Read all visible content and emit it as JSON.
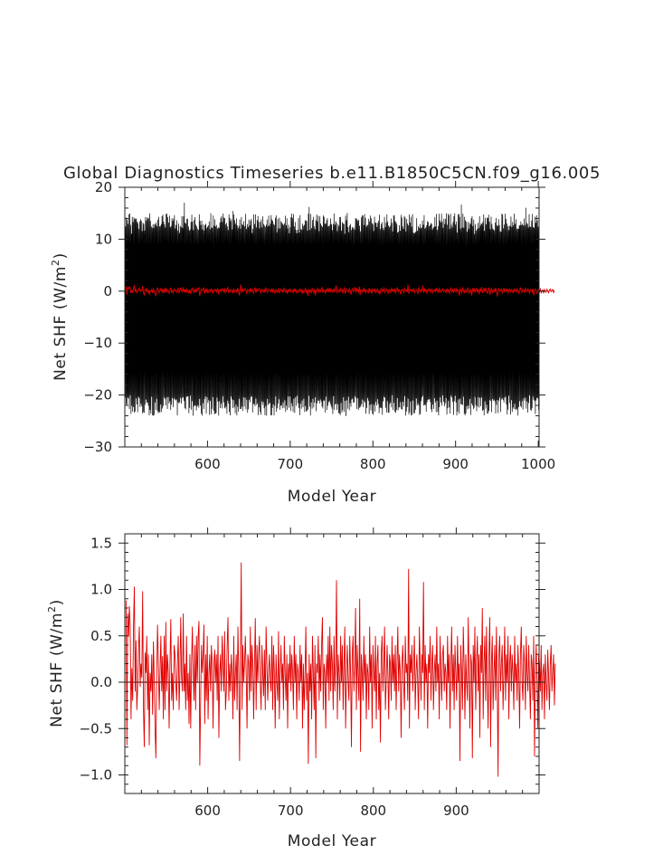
{
  "title": "Global Diagnostics Timeseries b.e11.B1850C5CN.f09_g16.005",
  "colors": {
    "monthly": "#000000",
    "annual": "#e00000",
    "zero_line": "#000000",
    "axes": "#222222"
  },
  "chart_data": [
    {
      "type": "line",
      "title": "Global Diagnostics Timeseries b.e11.B1850C5CN.f09_g16.005",
      "xlabel": "Model Year",
      "ylabel_main": "Net SHF (W/m",
      "ylabel_sup": "2",
      "ylabel_end": ")",
      "xlim": [
        500,
        1001
      ],
      "ylim": [
        -30,
        20
      ],
      "xticks": [
        600,
        700,
        800,
        900,
        1000
      ],
      "xtick_labels": [
        "600",
        "700",
        "800",
        "900",
        "1000"
      ],
      "yticks": [
        20,
        10,
        0,
        -10,
        -20,
        -30
      ],
      "ytick_labels": [
        "20",
        "10",
        "0",
        "−10",
        "−20",
        "−30"
      ],
      "grid": false,
      "series": [
        {
          "color": "#000000",
          "kind": "monthly seasonal cycle",
          "summary": {
            "typical_max": 13,
            "typical_min": -22,
            "peak_max": 17.5,
            "peak_min": -27
          }
        },
        {
          "color": "#e00000",
          "kind": "annual mean",
          "summary": {
            "mean": 0.2,
            "range": [
              -1.0,
              1.3
            ]
          }
        }
      ]
    },
    {
      "type": "line",
      "xlabel": "Model Year",
      "ylabel_main": "Net SHF (W/m",
      "ylabel_sup": "2",
      "ylabel_end": ")",
      "xlim": [
        500,
        1000
      ],
      "ylim": [
        -1.2,
        1.6
      ],
      "xticks": [
        600,
        700,
        800,
        900
      ],
      "xtick_labels": [
        "600",
        "700",
        "800",
        "900"
      ],
      "yticks": [
        1.5,
        1.0,
        0.5,
        0.0,
        -0.5,
        -1.0
      ],
      "ytick_labels": [
        "1.5",
        "1.0",
        "0.5",
        "0.0",
        "−0.5",
        "−1.0"
      ],
      "grid": false,
      "reference_line": 0,
      "series": [
        {
          "color": "#e00000",
          "kind": "annual mean",
          "x_start": 501,
          "x_step": 1,
          "values": [
            0.88,
            -0.68,
            0.74,
            0.49,
            0.82,
            0.6,
            -0.4,
            0.15,
            -0.2,
            0.62,
            1.03,
            -0.1,
            0.45,
            -0.3,
            -0.05,
            0.35,
            0.6,
            -0.05,
            0.2,
            0.05,
            0.98,
            -0.3,
            -0.7,
            0.32,
            0.1,
            0.5,
            -0.3,
            0.3,
            -0.68,
            0.1,
            -0.1,
            0.3,
            -0.35,
            0.44,
            0.05,
            -0.5,
            -0.82,
            0.1,
            0.62,
            0.2,
            -0.3,
            0.1,
            0.5,
            -0.1,
            0.28,
            -0.4,
            0.5,
            -0.3,
            0.65,
            -0.1,
            0.3,
            0.1,
            -0.5,
            0.2,
            0.68,
            -0.2,
            0.1,
            -0.3,
            0.4,
            0.3,
            0.0,
            -0.2,
            0.22,
            0.5,
            -0.3,
            0.1,
            0.7,
            0.05,
            -0.1,
            0.74,
            -0.1,
            0.2,
            -0.3,
            0.5,
            -0.2,
            0.1,
            -0.45,
            0.3,
            -0.5,
            0.2,
            0.6,
            0.1,
            -0.2,
            0.4,
            -0.3,
            0.5,
            0.0,
            0.5,
            0.66,
            -0.9,
            -0.2,
            0.4,
            0.1,
            0.3,
            0.62,
            -0.45,
            0.3,
            -0.2,
            0.5,
            -0.4,
            0.1,
            0.3,
            -0.1,
            0.4,
            0.2,
            -0.5,
            0.2,
            0.35,
            0.0,
            0.3,
            -0.2,
            0.5,
            -0.6,
            0.1,
            0.3,
            -0.1,
            0.5,
            0.2,
            -0.1,
            0.55,
            -0.3,
            -0.1,
            0.4,
            0.7,
            -0.2,
            0.2,
            -0.1,
            0.3,
            0.1,
            -0.4,
            0.5,
            -0.2,
            0.1,
            0.3,
            -0.3,
            0.6,
            0.1,
            -0.85,
            0.2,
            1.29,
            -0.3,
            0.4,
            0.0,
            0.2,
            0.5,
            0.1,
            -0.5,
            0.3,
            0.2,
            -0.2,
            0.6,
            -0.1,
            0.4,
            0.2,
            -0.4,
            0.2,
            0.69,
            -0.3,
            0.4,
            0.0,
            0.3,
            0.5,
            0.0,
            -0.3,
            0.4,
            0.1,
            -0.15,
            0.35,
            -0.3,
            0.6,
            0.2,
            -0.2,
            0.1,
            0.3,
            0.0,
            -0.1,
            0.5,
            -0.3,
            0.4,
            0.1,
            -0.5,
            0.3,
            0.0,
            -0.2,
            0.55,
            -0.4,
            0.1,
            0.4,
            0.0,
            0.2,
            -0.3,
            0.5,
            0.1,
            -0.2,
            0.3,
            -0.5,
            0.2,
            0.0,
            0.4,
            -0.1,
            0.3,
            0.1,
            -0.3,
            0.5,
            0.0,
            0.3,
            -0.4,
            0.2,
            0.1,
            -0.2,
            0.4,
            0.0,
            0.3,
            -0.5,
            0.2,
            -0.3,
            0.1,
            0.6,
            -0.2,
            0.1,
            -0.88,
            0.3,
            -0.1,
            0.2,
            -0.4,
            0.5,
            0.1,
            -0.3,
            0.4,
            -0.82,
            0.2,
            0.1,
            0.5,
            -0.2,
            0.3,
            -0.1,
            0.4,
            0.7,
            -0.3,
            0.2,
            0.1,
            -0.5,
            0.3,
            0.0,
            0.5,
            -0.2,
            0.6,
            -0.1,
            0.4,
            0.2,
            -0.3,
            0.5,
            -0.1,
            0.2,
            1.1,
            -0.4,
            0.3,
            0.1,
            -0.2,
            0.5,
            0.0,
            0.4,
            -0.3,
            0.2,
            0.6,
            -0.5,
            0.1,
            0.4,
            0.0,
            -0.2,
            0.5,
            0.1,
            -0.7,
            0.3,
            0.5,
            -0.1,
            0.2,
            0.8,
            -0.3,
            0.4,
            0.1,
            -0.2,
            0.9,
            -0.75,
            0.3,
            0.1,
            -0.2,
            0.5,
            0.0,
            0.3,
            -0.4,
            0.2,
            0.1,
            -0.3,
            0.6,
            0.0,
            0.3,
            -0.5,
            0.4,
            0.1,
            -0.1,
            0.5,
            -0.4,
            0.2,
            0.4,
            -0.3,
            0.1,
            -0.65,
            0.3,
            0.5,
            -0.1,
            0.2,
            0.6,
            -0.3,
            0.0,
            0.4,
            0.1,
            -0.4,
            0.3,
            0.2,
            -0.2,
            0.5,
            0.0,
            0.3,
            -0.1,
            0.4,
            -0.3,
            0.2,
            0.6,
            -0.1,
            0.3,
            0.1,
            -0.6,
            0.2,
            0.4,
            0.0,
            -0.3,
            0.5,
            0.1,
            0.2,
            -0.2,
            1.22,
            -0.5,
            0.3,
            0.1,
            0.4,
            -0.1,
            0.2,
            0.5,
            -0.3,
            0.1,
            0.3,
            0.0,
            -0.4,
            0.6,
            0.2,
            -0.2,
            0.3,
            0.1,
            1.08,
            -0.3,
            0.4,
            0.0,
            0.2,
            -0.5,
            0.3,
            0.1,
            0.5,
            -0.2,
            0.2,
            0.4,
            -0.3,
            0.1,
            0.3,
            -0.1,
            0.6,
            0.0,
            0.2,
            -0.4,
            0.5,
            0.1,
            -0.2,
            0.3,
            0.4,
            -0.1,
            0.2,
            0.1,
            -0.3,
            0.5,
            0.0,
            0.3,
            -0.5,
            0.2,
            0.6,
            -0.1,
            0.3,
            -0.3,
            0.4,
            0.1,
            -0.2,
            0.5,
            0.0,
            0.2,
            -0.85,
            0.4,
            0.1,
            -0.3,
            0.6,
            0.2,
            -0.4,
            0.3,
            0.0,
            -0.2,
            0.7,
            0.1,
            -0.5,
            0.3,
            0.2,
            -0.82,
            0.4,
            0.0,
            0.6,
            -0.3,
            0.2,
            0.5,
            -0.1,
            0.3,
            -0.6,
            0.4,
            0.1,
            0.8,
            -0.4,
            0.2,
            0.5,
            -0.2,
            0.6,
            0.0,
            -0.5,
            0.3,
            0.7,
            -0.7,
            0.2,
            0.5,
            -0.3,
            0.1,
            0.4,
            -0.2,
            0.6,
            0.0,
            -1.02,
            0.3,
            0.5,
            -0.1,
            0.2,
            0.4,
            -0.3,
            0.1,
            0.6,
            -0.2,
            0.3,
            0.0,
            0.5,
            -0.4,
            0.2,
            0.4,
            -0.1,
            0.3,
            0.1,
            -0.3,
            0.5,
            0.0,
            0.2,
            -0.2,
            0.4,
            0.1,
            -0.5,
            0.3,
            0.6,
            0.0,
            -0.2,
            0.4,
            0.2,
            -0.3,
            0.5,
            0.1,
            -0.1,
            0.4,
            0.0,
            -0.4,
            0.3,
            0.2,
            -0.2,
            0.5,
            -0.8,
            0.1,
            0.4,
            0.0,
            -0.5,
            0.3,
            0.2,
            -0.1,
            0.4,
            -0.3,
            0.1,
            0.2,
            -0.4,
            0.3,
            0.0,
            -0.2,
            0.35,
            0.05,
            -0.3,
            0.2,
            0.4,
            -0.1,
            0.1,
            0.3,
            -0.25,
            0.2
          ]
        }
      ]
    }
  ]
}
